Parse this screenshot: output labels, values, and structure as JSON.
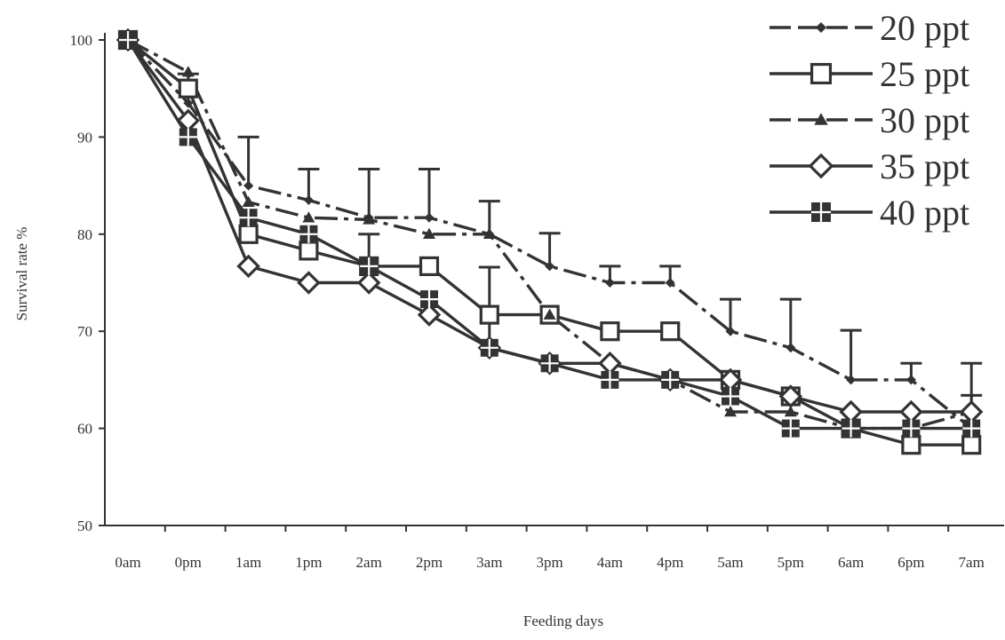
{
  "chart_data": {
    "type": "line",
    "title": "",
    "xlabel": "Feeding days",
    "ylabel": "Survival rate %",
    "categories": [
      "0am",
      "0pm",
      "1am",
      "1pm",
      "2am",
      "2pm",
      "3am",
      "3pm",
      "4am",
      "4pm",
      "5am",
      "5pm",
      "6am",
      "6pm",
      "7am"
    ],
    "ylim": [
      50,
      100
    ],
    "yticks": [
      "50",
      "60",
      "70",
      "80",
      "90",
      "100"
    ],
    "grid": false,
    "legend_position": "top-right",
    "series": [
      {
        "name": "20 ppt",
        "marker": "small-diamond",
        "line": "dash-dot",
        "values": [
          100,
          93.5,
          85,
          83.5,
          81.7,
          81.7,
          80,
          76.7,
          75,
          75,
          70,
          68.3,
          65,
          65,
          60
        ],
        "errors": [
          0,
          3,
          5,
          3.2,
          5,
          5,
          3.4,
          3.4,
          1.7,
          1.7,
          3.3,
          5,
          5.1,
          1.7,
          6.7
        ]
      },
      {
        "name": "25 ppt",
        "marker": "open-square",
        "line": "solid",
        "values": [
          100,
          95,
          80,
          78.3,
          76.7,
          76.7,
          71.7,
          71.7,
          70,
          70,
          65,
          63.3,
          60,
          58.3,
          58.3
        ],
        "errors": []
      },
      {
        "name": "30 ppt",
        "marker": "triangle",
        "line": "dash-dot",
        "values": [
          100,
          96.7,
          83.3,
          81.7,
          81.5,
          80,
          80,
          71.7,
          66.7,
          65,
          61.7,
          61.7,
          60,
          60,
          61.7
        ],
        "errors": [
          0,
          0,
          0,
          0,
          0,
          0,
          0,
          0,
          0,
          0,
          0,
          0,
          0,
          0,
          1.7
        ]
      },
      {
        "name": "35 ppt",
        "marker": "open-diamond",
        "line": "solid",
        "values": [
          100,
          91.7,
          76.7,
          75,
          75,
          71.7,
          68.3,
          66.7,
          66.7,
          65,
          65,
          63.3,
          61.7,
          61.7,
          61.7
        ],
        "errors": [
          0,
          0,
          0,
          0,
          0,
          0,
          8.3,
          0,
          0,
          0,
          0,
          0,
          0,
          0,
          0
        ]
      },
      {
        "name": "40 ppt",
        "marker": "cross-square",
        "line": "solid",
        "values": [
          100,
          90,
          81.7,
          80,
          76.7,
          73.3,
          68.3,
          66.7,
          65,
          65,
          63.3,
          60,
          60,
          60,
          60
        ],
        "errors": [
          0,
          0,
          0,
          0,
          3.3,
          0,
          0,
          0,
          0,
          0,
          0,
          0,
          0,
          0,
          0
        ]
      }
    ],
    "colors": {
      "stroke": "#333333",
      "background": "#ffffff"
    }
  }
}
